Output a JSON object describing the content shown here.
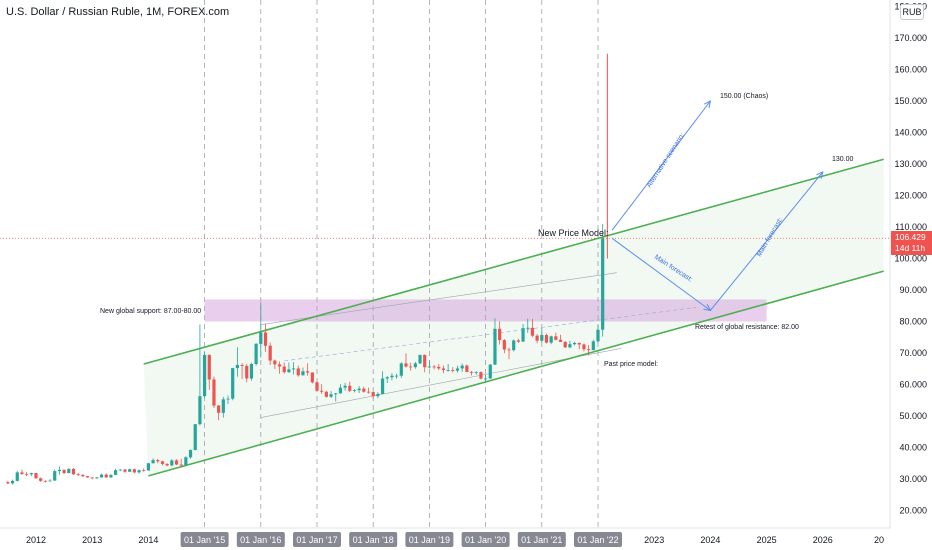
{
  "title": "U.S. Dollar / Russian Ruble, 1M, FOREX.com",
  "currency_button": "RUB",
  "last_price": {
    "value": "106.429",
    "countdown": "14d 11h",
    "color": "#ef5350"
  },
  "colors": {
    "up": "#26a69a",
    "down": "#ef5350",
    "channel": "#4caf50",
    "forecast": "#5b8def",
    "zone": "#ce93d8"
  },
  "chart_data": {
    "type": "candlestick",
    "xlim": [
      "2011-06",
      "2027-02"
    ],
    "ylim": [
      16,
      182
    ],
    "ylabel": "",
    "y_ticks": [
      20,
      30,
      40,
      50,
      60,
      70,
      80,
      90,
      100,
      110,
      120,
      130,
      140,
      150,
      160,
      170,
      180
    ],
    "y_tick_labels": [
      "20.000",
      "30.000",
      "40.000",
      "50.000",
      "60.000",
      "70.000",
      "80.000",
      "90.000",
      "100.000",
      "110.000",
      "120.000",
      "130.000",
      "140.000",
      "150.000",
      "160.000",
      "170.000",
      "180.000"
    ],
    "x_ticks": [
      {
        "date": "2012-01",
        "label": "2012",
        "highlight": false
      },
      {
        "date": "2013-01",
        "label": "2013",
        "highlight": false
      },
      {
        "date": "2014-01",
        "label": "2014",
        "highlight": false
      },
      {
        "date": "2015-01",
        "label": "01 Jan '15",
        "highlight": true
      },
      {
        "date": "2016-01",
        "label": "01 Jan '16",
        "highlight": true
      },
      {
        "date": "2017-01",
        "label": "01 Jan '17",
        "highlight": true
      },
      {
        "date": "2018-01",
        "label": "01 Jan '18",
        "highlight": true
      },
      {
        "date": "2019-01",
        "label": "01 Jan '19",
        "highlight": true
      },
      {
        "date": "2020-01",
        "label": "01 Jan '20",
        "highlight": true
      },
      {
        "date": "2021-01",
        "label": "01 Jan '21",
        "highlight": true
      },
      {
        "date": "2022-01",
        "label": "01 Jan '22",
        "highlight": true
      },
      {
        "date": "2023-01",
        "label": "2023",
        "highlight": false
      },
      {
        "date": "2024-01",
        "label": "2024",
        "highlight": false
      },
      {
        "date": "2025-01",
        "label": "2025",
        "highlight": false
      },
      {
        "date": "2026-01",
        "label": "2026",
        "highlight": false
      },
      {
        "date": "2027-01",
        "label": "20",
        "highlight": false
      }
    ],
    "candles_ohlc_by_year_start": "2011-07",
    "candles": [
      [
        29.0,
        29.5,
        28.4,
        28.6
      ],
      [
        28.6,
        29.8,
        28.3,
        29.4
      ],
      [
        29.4,
        32.6,
        29.2,
        32.1
      ],
      [
        32.1,
        33.0,
        31.3,
        31.6
      ],
      [
        31.6,
        32.2,
        30.9,
        31.5
      ],
      [
        31.5,
        32.0,
        30.9,
        31.9
      ],
      [
        31.9,
        32.0,
        30.1,
        30.2
      ],
      [
        30.2,
        30.5,
        29.1,
        29.4
      ],
      [
        29.4,
        29.6,
        28.9,
        29.3
      ],
      [
        29.3,
        30.0,
        29.2,
        29.5
      ],
      [
        29.5,
        33.0,
        29.4,
        32.5
      ],
      [
        32.5,
        34.0,
        31.4,
        32.9
      ],
      [
        32.9,
        33.0,
        31.6,
        31.9
      ],
      [
        31.9,
        33.4,
        31.8,
        33.2
      ],
      [
        33.2,
        33.5,
        31.3,
        31.5
      ],
      [
        31.5,
        32.0,
        30.9,
        31.3
      ],
      [
        31.3,
        31.5,
        30.6,
        30.9
      ],
      [
        30.9,
        31.0,
        30.4,
        30.5
      ],
      [
        30.5,
        30.5,
        29.9,
        30.2
      ],
      [
        30.2,
        30.7,
        30.1,
        30.5
      ],
      [
        30.5,
        31.7,
        30.4,
        31.4
      ],
      [
        31.4,
        31.8,
        30.4,
        30.5
      ],
      [
        30.5,
        31.5,
        30.4,
        31.3
      ],
      [
        31.3,
        33.3,
        31.2,
        32.8
      ],
      [
        32.8,
        33.1,
        32.5,
        33.0
      ],
      [
        33.0,
        33.2,
        32.0,
        32.3
      ],
      [
        32.3,
        33.3,
        32.2,
        33.1
      ],
      [
        33.1,
        33.3,
        31.8,
        32.1
      ],
      [
        32.1,
        33.0,
        31.7,
        32.8
      ],
      [
        32.8,
        33.4,
        32.3,
        32.7
      ],
      [
        32.7,
        35.1,
        32.6,
        35.0
      ],
      [
        35.0,
        36.6,
        34.9,
        36.0
      ],
      [
        36.0,
        36.4,
        35.0,
        35.6
      ],
      [
        35.6,
        35.8,
        34.3,
        34.8
      ],
      [
        34.8,
        35.0,
        34.0,
        34.3
      ],
      [
        34.3,
        36.3,
        34.1,
        35.9
      ],
      [
        35.9,
        36.3,
        34.4,
        34.6
      ],
      [
        34.6,
        36.4,
        33.6,
        34.3
      ],
      [
        34.3,
        37.2,
        34.1,
        36.9
      ],
      [
        36.9,
        39.4,
        36.5,
        39.2
      ],
      [
        39.2,
        47.5,
        39.1,
        47.4
      ],
      [
        47.4,
        79.0,
        47.0,
        56.3
      ],
      [
        56.3,
        70.3,
        55.7,
        69.4
      ],
      [
        69.4,
        69.6,
        58.3,
        61.6
      ],
      [
        61.6,
        62.5,
        52.5,
        53.3
      ],
      [
        53.3,
        53.5,
        48.7,
        51.0
      ],
      [
        51.0,
        56.0,
        49.5,
        55.3
      ],
      [
        55.3,
        56.5,
        53.8,
        55.5
      ],
      [
        55.5,
        65.3,
        55.0,
        65.2
      ],
      [
        65.2,
        71.8,
        62.5,
        66.2
      ],
      [
        66.2,
        66.8,
        61.7,
        65.9
      ],
      [
        65.9,
        66.6,
        60.7,
        61.9
      ],
      [
        61.9,
        66.9,
        61.2,
        66.5
      ],
      [
        66.5,
        73.2,
        66.0,
        72.9
      ],
      [
        72.9,
        86.0,
        68.6,
        76.5
      ],
      [
        76.5,
        79.3,
        70.4,
        72.3
      ],
      [
        72.3,
        73.3,
        66.2,
        67.6
      ],
      [
        67.6,
        67.9,
        64.9,
        66.4
      ],
      [
        66.4,
        67.3,
        63.4,
        65.7
      ],
      [
        65.7,
        67.0,
        63.5,
        63.9
      ],
      [
        63.9,
        67.0,
        63.7,
        64.8
      ],
      [
        64.8,
        67.1,
        63.2,
        65.1
      ],
      [
        65.1,
        66.0,
        62.5,
        62.9
      ],
      [
        62.9,
        65.4,
        63.0,
        64.2
      ],
      [
        64.2,
        66.7,
        62.8,
        63.8
      ],
      [
        63.8,
        63.9,
        60.3,
        60.7
      ],
      [
        60.7,
        61.0,
        57.8,
        58.0
      ],
      [
        58.0,
        60.1,
        57.0,
        57.7
      ],
      [
        57.7,
        57.9,
        55.8,
        56.1
      ],
      [
        56.1,
        57.9,
        55.7,
        56.9
      ],
      [
        56.9,
        57.3,
        54.6,
        57.2
      ],
      [
        57.2,
        60.1,
        57.1,
        59.0
      ],
      [
        59.0,
        60.5,
        58.0,
        59.6
      ],
      [
        59.6,
        60.9,
        57.6,
        58.0
      ],
      [
        58.0,
        58.5,
        57.5,
        58.2
      ],
      [
        58.2,
        59.5,
        57.3,
        58.7
      ],
      [
        58.7,
        59.3,
        57.4,
        57.7
      ],
      [
        57.7,
        59.0,
        57.1,
        57.6
      ],
      [
        57.6,
        57.7,
        55.6,
        56.3
      ],
      [
        56.3,
        57.6,
        55.7,
        57.0
      ],
      [
        57.0,
        64.2,
        57.0,
        61.9
      ],
      [
        61.9,
        62.7,
        60.5,
        62.3
      ],
      [
        62.3,
        63.6,
        61.3,
        62.8
      ],
      [
        62.8,
        63.4,
        61.8,
        62.8
      ],
      [
        62.8,
        67.1,
        62.1,
        66.7
      ],
      [
        66.7,
        69.9,
        65.4,
        65.7
      ],
      [
        65.7,
        66.9,
        64.4,
        65.5
      ],
      [
        65.5,
        67.2,
        65.0,
        66.7
      ],
      [
        66.7,
        69.0,
        66.5,
        69.4
      ],
      [
        69.4,
        69.5,
        63.9,
        65.5
      ],
      [
        65.5,
        67.7,
        65.1,
        65.7
      ],
      [
        65.7,
        66.2,
        64.8,
        65.6
      ],
      [
        65.6,
        66.5,
        64.6,
        65.1
      ],
      [
        65.1,
        66.0,
        63.6,
        64.6
      ],
      [
        64.6,
        66.5,
        64.1,
        64.6
      ],
      [
        64.6,
        65.5,
        63.8,
        64.4
      ],
      [
        64.4,
        66.0,
        63.8,
        65.1
      ],
      [
        65.1,
        66.7,
        64.0,
        66.0
      ],
      [
        66.0,
        66.4,
        63.9,
        64.0
      ],
      [
        64.0,
        64.3,
        62.9,
        63.8
      ],
      [
        63.8,
        64.2,
        63.1,
        63.9
      ],
      [
        63.9,
        64.2,
        61.6,
        61.9
      ],
      [
        61.9,
        63.1,
        60.9,
        61.9
      ],
      [
        61.9,
        66.5,
        61.8,
        66.3
      ],
      [
        66.3,
        81.0,
        66.2,
        77.7
      ],
      [
        77.7,
        80.0,
        72.7,
        74.1
      ],
      [
        74.1,
        74.4,
        69.9,
        71.1
      ],
      [
        71.1,
        71.7,
        68.0,
        70.9
      ],
      [
        70.9,
        74.3,
        70.5,
        74.0
      ],
      [
        74.0,
        74.5,
        73.2,
        73.6
      ],
      [
        73.6,
        79.2,
        73.6,
        77.9
      ],
      [
        77.9,
        80.9,
        76.4,
        78.0
      ],
      [
        78.0,
        80.8,
        75.0,
        75.5
      ],
      [
        75.5,
        76.0,
        73.1,
        73.9
      ],
      [
        73.9,
        77.8,
        73.4,
        75.7
      ],
      [
        75.7,
        76.2,
        73.0,
        73.3
      ],
      [
        73.3,
        75.5,
        72.8,
        75.3
      ],
      [
        75.3,
        76.5,
        74.0,
        74.2
      ],
      [
        74.2,
        75.8,
        73.5,
        73.5
      ],
      [
        73.5,
        73.8,
        71.6,
        71.8
      ],
      [
        71.8,
        73.9,
        71.5,
        72.8
      ],
      [
        72.8,
        73.5,
        72.4,
        73.2
      ],
      [
        73.2,
        73.3,
        71.2,
        72.7
      ],
      [
        72.7,
        73.0,
        70.5,
        71.2
      ],
      [
        71.2,
        72.5,
        69.2,
        70.9
      ],
      [
        70.9,
        74.2,
        70.9,
        73.7
      ],
      [
        73.7,
        78.9,
        73.3,
        77.4
      ],
      [
        77.4,
        111.0,
        75.2,
        106.4
      ]
    ],
    "current_price": 106.429,
    "spike": {
      "date": "2022-03",
      "high": 165
    },
    "channel_upper": [
      [
        "2013-12",
        66.5
      ],
      [
        "2027-02",
        131.5
      ]
    ],
    "channel_lower": [
      [
        "2014-01",
        31.0
      ],
      [
        "2027-02",
        96.0
      ]
    ],
    "support_zone": {
      "from": "2015-01",
      "to": "2025-01",
      "low": 80.0,
      "high": 87.0
    },
    "forecast_main": [
      [
        "2022-04",
        106.4
      ],
      [
        "2024-01",
        83.5
      ],
      [
        "2026-01",
        127.5
      ]
    ],
    "forecast_alt": [
      [
        "2022-04",
        109.0
      ],
      [
        "2024-01",
        150.0
      ]
    ],
    "annotations": {
      "support": "New global support: 87.00-80.00",
      "model": "New Price Model:",
      "retest": "Retest of global resistance: 82.00",
      "past": "Past price model:",
      "chaos": "150.00 (Chaos)",
      "target": "130.00",
      "alt_label": "Alternative scenario:",
      "main_label_1": "Main forecast:",
      "main_label_2": "Main forecast:"
    }
  }
}
